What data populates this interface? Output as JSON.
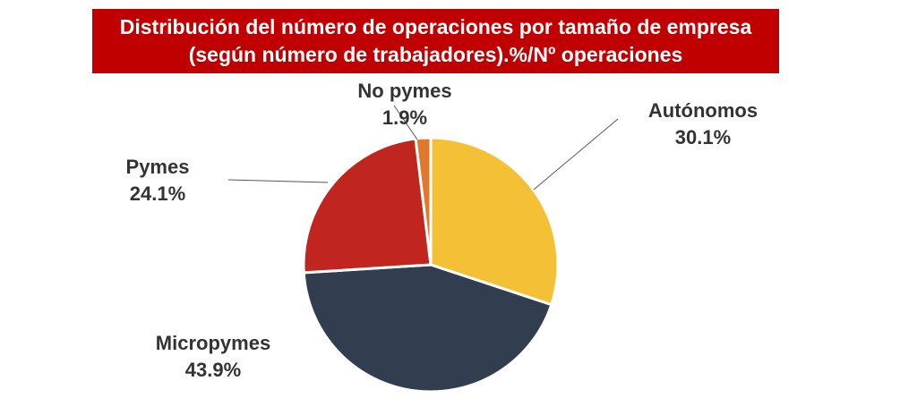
{
  "chart_data": {
    "type": "pie",
    "title": "Distribución del número de operaciones por tamaño de empresa (según número de trabajadores).%/Nº operaciones",
    "categories": [
      "Autónomos",
      "Micropymes",
      "Pymes",
      "No pymes"
    ],
    "values": [
      30.1,
      43.9,
      24.1,
      1.9
    ],
    "value_labels": [
      "30.1%",
      "43.9%",
      "24.1%",
      "1.9%"
    ],
    "colors": [
      "#F4C136",
      "#323D50",
      "#C0261F",
      "#E0782E"
    ]
  }
}
